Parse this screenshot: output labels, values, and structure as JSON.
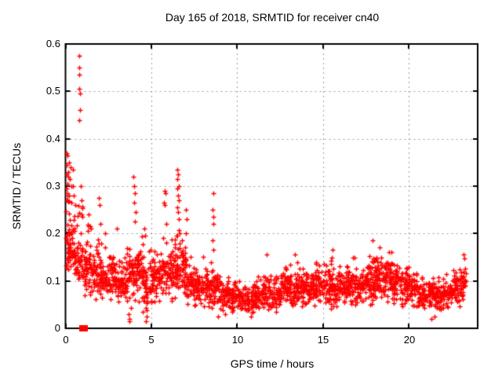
{
  "title": "Day 165 of 2018, SRMTID for receiver cn40",
  "colors": {
    "marker": "#ff0000",
    "grid": "#9c9c9c",
    "axis": "#000000",
    "background": "#ffffff",
    "text": "#000000"
  },
  "chart_data": {
    "type": "scatter",
    "title": "Day 165 of 2018, SRMTID for receiver cn40",
    "xlabel": "GPS time / hours",
    "ylabel": "SRMTID / TECUs",
    "xlim": [
      0,
      24
    ],
    "ylim": [
      0,
      0.6
    ],
    "xticks": [
      0,
      5,
      10,
      15,
      20
    ],
    "yticks": [
      0,
      0.1,
      0.2,
      0.3,
      0.4,
      0.5,
      0.6
    ],
    "xtick_labels": [
      "0",
      "5",
      "10",
      "15",
      "20"
    ],
    "ytick_labels": [
      "0",
      "0.1",
      "0.2",
      "0.3",
      "0.4",
      "0.5",
      "0.6"
    ],
    "grid": true,
    "grid_style": "dashed",
    "legend": "none",
    "marker": {
      "symbol": "+",
      "color": "#ff0000",
      "size": 7
    },
    "seed": 16518,
    "special_points": [
      {
        "x": 1.05,
        "y": 0.0,
        "marker": "filled-square",
        "color": "#ff0000",
        "w": 11,
        "h": 8
      }
    ],
    "outlier_points": [
      [
        0.05,
        0.37
      ],
      [
        0.12,
        0.365
      ],
      [
        0.2,
        0.35
      ],
      [
        0.08,
        0.345
      ],
      [
        0.3,
        0.34
      ],
      [
        0.42,
        0.335
      ],
      [
        0.18,
        0.33
      ],
      [
        0.06,
        0.325
      ],
      [
        0.15,
        0.32
      ],
      [
        0.26,
        0.315
      ],
      [
        0.1,
        0.305
      ],
      [
        0.36,
        0.3
      ],
      [
        0.05,
        0.295
      ],
      [
        0.12,
        0.285
      ],
      [
        0.2,
        0.28
      ],
      [
        0.5,
        0.28
      ],
      [
        0.08,
        0.27
      ],
      [
        0.32,
        0.265
      ],
      [
        0.55,
        0.26
      ],
      [
        0.45,
        0.3
      ],
      [
        0.82,
        0.575
      ],
      [
        0.82,
        0.55
      ],
      [
        0.82,
        0.535
      ],
      [
        0.8,
        0.505
      ],
      [
        0.84,
        0.495
      ],
      [
        0.84,
        0.46
      ],
      [
        0.81,
        0.44
      ],
      [
        0.88,
        0.3
      ],
      [
        0.92,
        0.27
      ],
      [
        0.95,
        0.24
      ],
      [
        1.35,
        0.24
      ],
      [
        1.45,
        0.215
      ],
      [
        1.95,
        0.275
      ],
      [
        2.0,
        0.26
      ],
      [
        2.05,
        0.22
      ],
      [
        2.3,
        0.2
      ],
      [
        3.0,
        0.21
      ],
      [
        3.95,
        0.32
      ],
      [
        4.0,
        0.3
      ],
      [
        4.05,
        0.285
      ],
      [
        4.0,
        0.265
      ],
      [
        4.1,
        0.245
      ],
      [
        4.05,
        0.225
      ],
      [
        4.6,
        0.21
      ],
      [
        4.65,
        0.195
      ],
      [
        5.78,
        0.29
      ],
      [
        5.82,
        0.285
      ],
      [
        5.75,
        0.265
      ],
      [
        5.8,
        0.26
      ],
      [
        5.85,
        0.22
      ],
      [
        6.52,
        0.335
      ],
      [
        6.55,
        0.325
      ],
      [
        6.5,
        0.315
      ],
      [
        6.58,
        0.3
      ],
      [
        6.52,
        0.295
      ],
      [
        6.55,
        0.28
      ],
      [
        6.6,
        0.27
      ],
      [
        6.5,
        0.255
      ],
      [
        6.55,
        0.245
      ],
      [
        6.62,
        0.23
      ],
      [
        7.0,
        0.25
      ],
      [
        7.05,
        0.23
      ],
      [
        7.0,
        0.2
      ],
      [
        8.6,
        0.285
      ],
      [
        8.58,
        0.25
      ],
      [
        8.62,
        0.235
      ],
      [
        8.6,
        0.22
      ],
      [
        8.55,
        0.185
      ],
      [
        8.6,
        0.165
      ],
      [
        11.7,
        0.155
      ],
      [
        13.35,
        0.155
      ],
      [
        15.55,
        0.165
      ],
      [
        17.9,
        0.185
      ],
      [
        18.3,
        0.17
      ],
      [
        23.2,
        0.155
      ],
      [
        3.7,
        0.02
      ],
      [
        3.72,
        0.015
      ],
      [
        3.68,
        0.03
      ],
      [
        4.7,
        0.015
      ],
      [
        4.72,
        0.025
      ],
      [
        4.5,
        0.035
      ],
      [
        8.9,
        0.025
      ],
      [
        9.3,
        0.03
      ],
      [
        10.8,
        0.025
      ],
      [
        21.3,
        0.02
      ],
      [
        21.5,
        0.025
      ]
    ],
    "band_bins_format": [
      "hour_start",
      "width_hours",
      "count",
      "y_min",
      "y_mode",
      "y_max"
    ],
    "band_bins": [
      [
        0.0,
        0.5,
        60,
        0.09,
        0.17,
        0.31
      ],
      [
        0.5,
        0.5,
        55,
        0.08,
        0.14,
        0.27
      ],
      [
        1.0,
        0.5,
        55,
        0.07,
        0.12,
        0.22
      ],
      [
        1.5,
        0.5,
        50,
        0.06,
        0.11,
        0.2
      ],
      [
        2.0,
        0.5,
        50,
        0.06,
        0.1,
        0.19
      ],
      [
        2.5,
        0.5,
        50,
        0.05,
        0.1,
        0.16
      ],
      [
        3.0,
        0.5,
        50,
        0.05,
        0.09,
        0.15
      ],
      [
        3.5,
        0.5,
        50,
        0.03,
        0.1,
        0.18
      ],
      [
        4.0,
        0.5,
        55,
        0.04,
        0.11,
        0.24
      ],
      [
        4.5,
        0.5,
        50,
        0.03,
        0.09,
        0.18
      ],
      [
        5.0,
        0.5,
        50,
        0.05,
        0.1,
        0.17
      ],
      [
        5.5,
        0.5,
        50,
        0.05,
        0.11,
        0.21
      ],
      [
        6.0,
        0.5,
        55,
        0.05,
        0.12,
        0.22
      ],
      [
        6.5,
        0.5,
        55,
        0.05,
        0.12,
        0.22
      ],
      [
        7.0,
        0.5,
        50,
        0.04,
        0.09,
        0.16
      ],
      [
        7.5,
        0.5,
        50,
        0.04,
        0.08,
        0.14
      ],
      [
        8.0,
        0.5,
        50,
        0.04,
        0.09,
        0.16
      ],
      [
        8.5,
        0.5,
        50,
        0.035,
        0.08,
        0.14
      ],
      [
        9.0,
        0.5,
        45,
        0.03,
        0.07,
        0.11
      ],
      [
        9.5,
        0.5,
        45,
        0.03,
        0.065,
        0.1
      ],
      [
        10.0,
        0.5,
        45,
        0.03,
        0.06,
        0.1
      ],
      [
        10.5,
        0.5,
        45,
        0.03,
        0.06,
        0.1
      ],
      [
        11.0,
        0.5,
        45,
        0.03,
        0.065,
        0.11
      ],
      [
        11.5,
        0.5,
        45,
        0.03,
        0.07,
        0.13
      ],
      [
        12.0,
        0.5,
        45,
        0.035,
        0.07,
        0.12
      ],
      [
        12.5,
        0.5,
        50,
        0.04,
        0.08,
        0.13
      ],
      [
        13.0,
        0.5,
        50,
        0.04,
        0.08,
        0.14
      ],
      [
        13.5,
        0.5,
        50,
        0.04,
        0.085,
        0.13
      ],
      [
        14.0,
        0.5,
        50,
        0.04,
        0.08,
        0.12
      ],
      [
        14.5,
        0.5,
        50,
        0.045,
        0.09,
        0.14
      ],
      [
        15.0,
        0.5,
        50,
        0.04,
        0.09,
        0.15
      ],
      [
        15.5,
        0.5,
        50,
        0.04,
        0.08,
        0.14
      ],
      [
        16.0,
        0.5,
        50,
        0.04,
        0.08,
        0.14
      ],
      [
        16.5,
        0.5,
        50,
        0.04,
        0.085,
        0.15
      ],
      [
        17.0,
        0.5,
        50,
        0.05,
        0.09,
        0.14
      ],
      [
        17.5,
        0.5,
        55,
        0.05,
        0.1,
        0.17
      ],
      [
        18.0,
        0.5,
        55,
        0.05,
        0.1,
        0.16
      ],
      [
        18.5,
        0.5,
        55,
        0.05,
        0.105,
        0.16
      ],
      [
        19.0,
        0.5,
        50,
        0.05,
        0.1,
        0.15
      ],
      [
        19.5,
        0.5,
        50,
        0.04,
        0.09,
        0.13
      ],
      [
        20.0,
        0.5,
        50,
        0.04,
        0.08,
        0.12
      ],
      [
        20.5,
        0.5,
        45,
        0.04,
        0.07,
        0.11
      ],
      [
        21.0,
        0.5,
        45,
        0.03,
        0.07,
        0.11
      ],
      [
        21.5,
        0.5,
        45,
        0.03,
        0.065,
        0.11
      ],
      [
        22.0,
        0.5,
        45,
        0.04,
        0.07,
        0.12
      ],
      [
        22.5,
        0.5,
        45,
        0.04,
        0.08,
        0.13
      ],
      [
        23.0,
        0.35,
        30,
        0.05,
        0.09,
        0.155
      ]
    ]
  }
}
